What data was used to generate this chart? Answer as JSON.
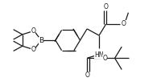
{
  "bg_color": "#FFFFFF",
  "line_color": "#1a1a1a",
  "lw": 0.9,
  "fs": 5.5,
  "figsize": [
    2.01,
    1.02
  ],
  "dpi": 100,
  "xlim": [
    -5,
    205
  ],
  "ylim": [
    -5,
    107
  ]
}
